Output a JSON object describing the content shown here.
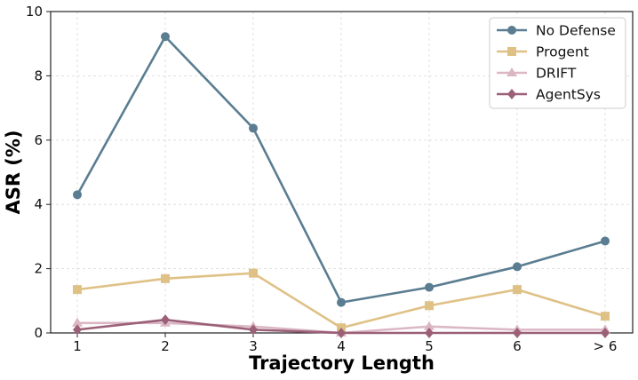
{
  "chart_data": {
    "type": "line",
    "xlabel": "Trajectory Length",
    "ylabel": "ASR (%)",
    "categories": [
      "1",
      "2",
      "3",
      "4",
      "5",
      "6",
      "> 6"
    ],
    "ylim": [
      0,
      10
    ],
    "yticks": [
      "0",
      "2",
      "4",
      "6",
      "8",
      "10"
    ],
    "grid": true,
    "legend_position": "top-right",
    "series": [
      {
        "name": "No Defense",
        "color": "#5a7d91",
        "marker": "circle",
        "values": [
          4.3,
          9.22,
          6.37,
          0.95,
          1.42,
          2.06,
          2.86
        ]
      },
      {
        "name": "Progent",
        "color": "#dfc186",
        "marker": "square",
        "values": [
          1.35,
          1.69,
          1.86,
          0.16,
          0.85,
          1.35,
          0.52
        ]
      },
      {
        "name": "DRIFT",
        "color": "#dbb7c3",
        "marker": "triangle",
        "values": [
          0.31,
          0.31,
          0.2,
          0.0,
          0.2,
          0.1,
          0.1
        ]
      },
      {
        "name": "AgentSys",
        "color": "#9b6077",
        "marker": "diamond",
        "values": [
          0.1,
          0.41,
          0.1,
          0.0,
          0.0,
          0.0,
          0.0
        ]
      }
    ]
  }
}
